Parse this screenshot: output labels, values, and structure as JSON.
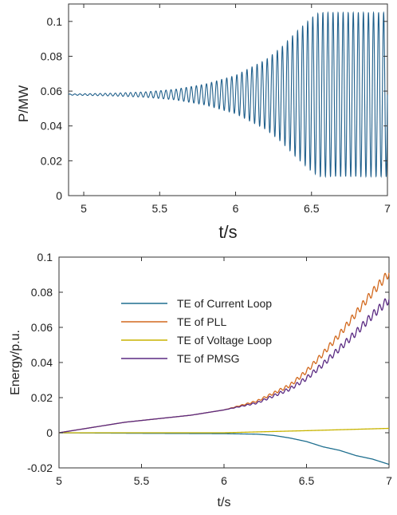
{
  "chart_data": [
    {
      "type": "line",
      "xlabel": "t/s",
      "ylabel": "P/MW",
      "xlim": [
        4.9,
        7.0
      ],
      "ylim": [
        0,
        0.11
      ],
      "xticks": [
        5,
        5.5,
        6,
        6.5,
        7
      ],
      "yticks": [
        0,
        0.02,
        0.04,
        0.06,
        0.08,
        0.1
      ],
      "xtick_labels": [
        "5",
        "5.5",
        "6",
        "6.5",
        "7"
      ],
      "ytick_labels": [
        "0",
        "0.02",
        "0.04",
        "0.06",
        "0.08",
        "0.1"
      ],
      "grid": false,
      "series": [
        {
          "color": "#1f5f8b",
          "signal": "oscillation",
          "mean": 0.058,
          "frequency_hz": 30,
          "envelope": {
            "t": [
              4.9,
              5.2,
              5.4,
              5.6,
              5.8,
              6.0,
              6.2,
              6.3,
              6.4,
              6.5,
              6.55,
              7.0
            ],
            "amplitude": [
              0.0003,
              0.0008,
              0.0015,
              0.003,
              0.006,
              0.011,
              0.02,
              0.027,
              0.036,
              0.044,
              0.047,
              0.047
            ]
          }
        }
      ]
    },
    {
      "type": "line",
      "xlabel": "t/s",
      "ylabel": "Energy/p.u.",
      "xlim": [
        5.0,
        7.0
      ],
      "ylim": [
        -0.02,
        0.1
      ],
      "xticks": [
        5,
        5.5,
        6,
        6.5,
        7
      ],
      "yticks": [
        -0.02,
        0,
        0.02,
        0.04,
        0.06,
        0.08,
        0.1
      ],
      "xtick_labels": [
        "5",
        "5.5",
        "6",
        "6.5",
        "7"
      ],
      "ytick_labels": [
        "-0.02",
        "0",
        "0.02",
        "0.04",
        "0.06",
        "0.08",
        "0.1"
      ],
      "grid": false,
      "legend": "upper-left",
      "series": [
        {
          "name": "TE of Current Loop",
          "color": "#1f6f8f",
          "x": [
            5.0,
            5.5,
            6.0,
            6.2,
            6.3,
            6.4,
            6.5,
            6.6,
            6.7,
            6.8,
            6.9,
            7.0
          ],
          "y": [
            0.0,
            -0.0003,
            -0.0005,
            -0.0008,
            -0.0015,
            -0.003,
            -0.005,
            -0.008,
            -0.01,
            -0.013,
            -0.015,
            -0.018
          ]
        },
        {
          "name": "TE of PLL",
          "color": "#d2691e",
          "x": [
            5.0,
            5.2,
            5.4,
            5.6,
            5.8,
            6.0,
            6.2,
            6.4,
            6.5,
            6.6,
            6.7,
            6.8,
            6.9,
            7.0
          ],
          "y": [
            0.0,
            0.003,
            0.006,
            0.008,
            0.01,
            0.013,
            0.018,
            0.027,
            0.035,
            0.045,
            0.056,
            0.068,
            0.08,
            0.091
          ]
        },
        {
          "name": "TE of Voltage Loop",
          "color": "#c8b400",
          "x": [
            5.0,
            5.5,
            6.0,
            6.5,
            7.0
          ],
          "y": [
            0.0,
            0.0,
            0.0,
            0.0012,
            0.0025
          ]
        },
        {
          "name": "TE of PMSG",
          "color": "#5a2a82",
          "x": [
            5.0,
            5.2,
            5.4,
            5.6,
            5.8,
            6.0,
            6.2,
            6.4,
            6.5,
            6.6,
            6.7,
            6.8,
            6.9,
            7.0
          ],
          "y": [
            0.0,
            0.003,
            0.006,
            0.008,
            0.01,
            0.013,
            0.017,
            0.025,
            0.031,
            0.039,
            0.048,
            0.057,
            0.067,
            0.076
          ]
        }
      ]
    }
  ]
}
